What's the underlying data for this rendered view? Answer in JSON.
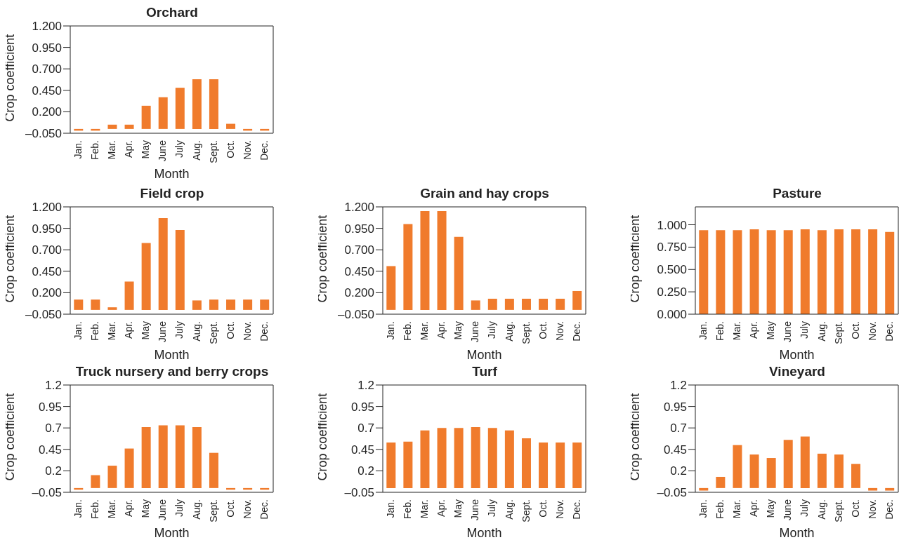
{
  "chart_data": [
    {
      "type": "bar",
      "title": "Orchard",
      "xlabel": "Month",
      "ylabel": "Crop coefficient",
      "categories": [
        "Jan.",
        "Feb.",
        "Mar.",
        "Apr.",
        "May",
        "June",
        "July",
        "Aug.",
        "Sept.",
        "Oct.",
        "Nov.",
        "Dec."
      ],
      "values": [
        -0.02,
        -0.02,
        0.05,
        0.05,
        0.27,
        0.37,
        0.48,
        0.58,
        0.58,
        0.06,
        -0.02,
        -0.02
      ],
      "color": "#f07b2c",
      "ylim": [
        -0.05,
        1.2
      ],
      "yticks": [
        {
          "value": -0.05,
          "label": "–0.050"
        },
        {
          "value": 0.2,
          "label": "0.200"
        },
        {
          "value": 0.45,
          "label": "0.450"
        },
        {
          "value": 0.7,
          "label": "0.700"
        },
        {
          "value": 0.95,
          "label": "0.950"
        },
        {
          "value": 1.2,
          "label": "1.200"
        }
      ]
    },
    {
      "type": "bar",
      "title": "Field crop",
      "xlabel": "Month",
      "ylabel": "Crop coefficient",
      "categories": [
        "Jan.",
        "Feb.",
        "Mar.",
        "Apr.",
        "May",
        "June",
        "July",
        "Aug.",
        "Sept.",
        "Oct.",
        "Nov.",
        "Dec."
      ],
      "values": [
        0.12,
        0.12,
        0.03,
        0.33,
        0.78,
        1.07,
        0.93,
        0.11,
        0.12,
        0.12,
        0.12,
        0.12
      ],
      "color": "#f07b2c",
      "ylim": [
        -0.05,
        1.2
      ],
      "yticks": [
        {
          "value": -0.05,
          "label": "–0.050"
        },
        {
          "value": 0.2,
          "label": "0.200"
        },
        {
          "value": 0.45,
          "label": "0.450"
        },
        {
          "value": 0.7,
          "label": "0.700"
        },
        {
          "value": 0.95,
          "label": "0.950"
        },
        {
          "value": 1.2,
          "label": "1.200"
        }
      ]
    },
    {
      "type": "bar",
      "title": "Grain and hay crops",
      "xlabel": "Month",
      "ylabel": "Crop coefficient",
      "categories": [
        "Jan.",
        "Feb.",
        "Mar.",
        "Apr.",
        "May",
        "June",
        "July",
        "Aug.",
        "Sept.",
        "Oct.",
        "Nov.",
        "Dec."
      ],
      "values": [
        0.51,
        1.0,
        1.15,
        1.15,
        0.85,
        0.11,
        0.13,
        0.13,
        0.13,
        0.13,
        0.13,
        0.22
      ],
      "color": "#f07b2c",
      "ylim": [
        -0.05,
        1.2
      ],
      "yticks": [
        {
          "value": -0.05,
          "label": "–0.050"
        },
        {
          "value": 0.2,
          "label": "0.200"
        },
        {
          "value": 0.45,
          "label": "0.450"
        },
        {
          "value": 0.7,
          "label": "0.700"
        },
        {
          "value": 0.95,
          "label": "0.950"
        },
        {
          "value": 1.2,
          "label": "1.200"
        }
      ]
    },
    {
      "type": "bar",
      "title": "Pasture",
      "xlabel": "Month",
      "ylabel": "Crop coefficient",
      "categories": [
        "Jan.",
        "Feb.",
        "Mar.",
        "Apr.",
        "May",
        "June",
        "July",
        "Aug.",
        "Sept.",
        "Oct.",
        "Nov.",
        "Dec."
      ],
      "values": [
        0.94,
        0.94,
        0.94,
        0.95,
        0.94,
        0.94,
        0.95,
        0.94,
        0.95,
        0.95,
        0.95,
        0.92
      ],
      "color": "#f07b2c",
      "ylim": [
        0,
        1.2
      ],
      "yticks": [
        {
          "value": 0,
          "label": "0.000"
        },
        {
          "value": 0.25,
          "label": "0.250"
        },
        {
          "value": 0.5,
          "label": "0.500"
        },
        {
          "value": 0.75,
          "label": "0.750"
        },
        {
          "value": 1,
          "label": "1.000"
        }
      ]
    },
    {
      "type": "bar",
      "title": "Truck nursery and berry crops",
      "xlabel": "Month",
      "ylabel": "Crop coefficient",
      "categories": [
        "Jan.",
        "Feb.",
        "Mar.",
        "Apr.",
        "May",
        "June",
        "July",
        "Aug.",
        "Sept.",
        "Oct.",
        "Nov.",
        "Dec."
      ],
      "values": [
        -0.02,
        0.15,
        0.26,
        0.46,
        0.71,
        0.73,
        0.73,
        0.71,
        0.41,
        -0.02,
        -0.02,
        -0.02
      ],
      "color": "#f07b2c",
      "ylim": [
        -0.05,
        1.2
      ],
      "yticks": [
        {
          "value": -0.05,
          "label": "–0.05"
        },
        0.2,
        0.45,
        0.7,
        0.95,
        1.2
      ]
    },
    {
      "type": "bar",
      "title": "Turf",
      "xlabel": "Month",
      "ylabel": "Crop coefficient",
      "categories": [
        "Jan.",
        "Feb.",
        "Mar.",
        "Apr.",
        "May",
        "June",
        "July",
        "Aug.",
        "Sept.",
        "Oct.",
        "Nov.",
        "Dec."
      ],
      "values": [
        0.53,
        0.54,
        0.67,
        0.7,
        0.7,
        0.71,
        0.7,
        0.67,
        0.58,
        0.53,
        0.53,
        0.53
      ],
      "color": "#f07b2c",
      "ylim": [
        -0.05,
        1.2
      ],
      "yticks": [
        {
          "value": -0.05,
          "label": "–0.05"
        },
        0.2,
        0.45,
        0.7,
        0.95,
        1.2
      ]
    },
    {
      "type": "bar",
      "title": "Vineyard",
      "xlabel": "Month",
      "ylabel": "Crop coefficient",
      "categories": [
        "Jan.",
        "Feb.",
        "Mar.",
        "Apr.",
        "May",
        "June",
        "July",
        "Aug.",
        "Sept.",
        "Oct.",
        "Nov.",
        "Dec."
      ],
      "values": [
        -0.03,
        0.13,
        0.5,
        0.39,
        0.35,
        0.56,
        0.6,
        0.4,
        0.39,
        0.28,
        -0.03,
        -0.03
      ],
      "color": "#f07b2c",
      "ylim": [
        -0.05,
        1.2
      ],
      "yticks": [
        {
          "value": -0.05,
          "label": "–0.05"
        },
        0.2,
        0.45,
        0.7,
        0.95,
        1.2
      ]
    }
  ]
}
